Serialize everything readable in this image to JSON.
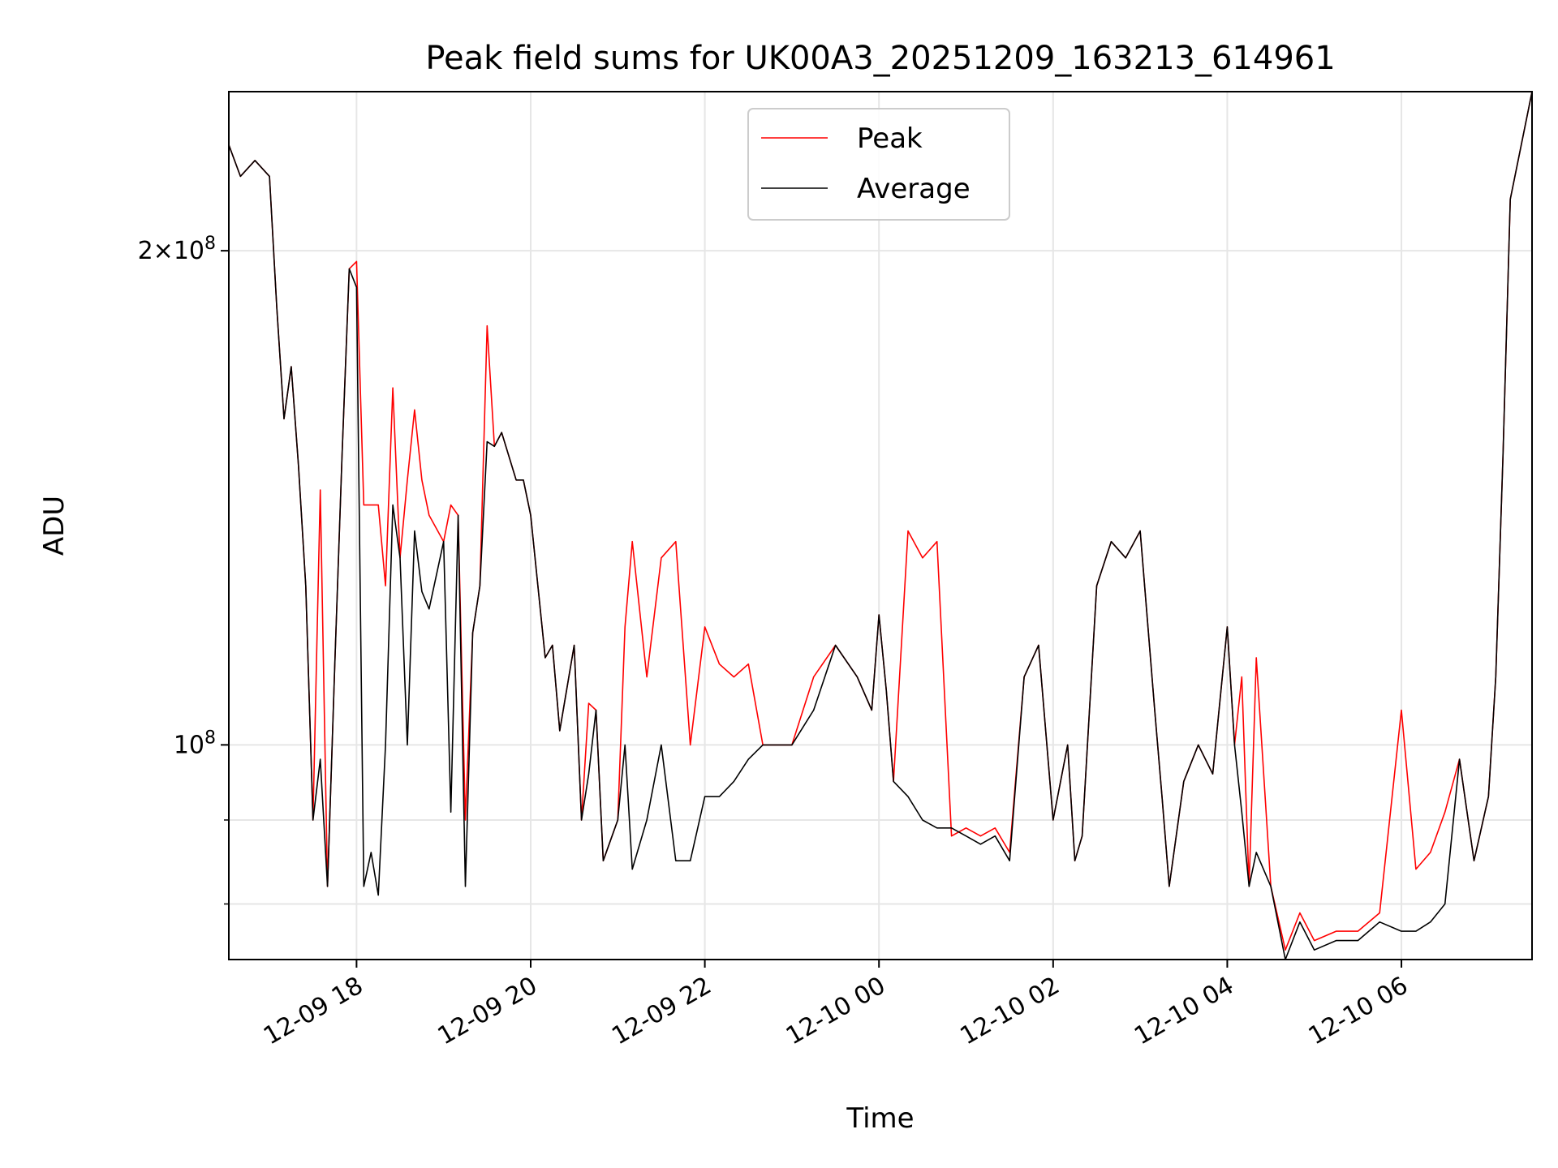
{
  "chart_data": {
    "type": "line",
    "title": "Peak field sums for UK00A3_20251209_163213_614961",
    "xlabel": "Time",
    "ylabel": "ADU",
    "y_scale": "log",
    "ylim": [
      74000000,
      250000000
    ],
    "xlim": [
      "2025-12-09 16:32",
      "2025-12-10 07:30"
    ],
    "x_ticks": [
      "12-09 18",
      "12-09 20",
      "12-09 22",
      "12-10 00",
      "12-10 02",
      "12-10 04",
      "12-10 06"
    ],
    "y_tick_labels": [
      "2×10^8",
      "10^8"
    ],
    "grid": true,
    "legend": {
      "placement": "top-center",
      "entries": [
        "Peak",
        "Average"
      ]
    },
    "colors": {
      "Peak": "#ff0000",
      "Average": "#000000"
    },
    "series": [
      {
        "name": "Average",
        "x": [
          "2025-12-09 16:32",
          "2025-12-09 16:40",
          "2025-12-09 16:50",
          "2025-12-09 17:00",
          "2025-12-09 17:05",
          "2025-12-09 17:10",
          "2025-12-09 17:15",
          "2025-12-09 17:20",
          "2025-12-09 17:25",
          "2025-12-09 17:30",
          "2025-12-09 17:35",
          "2025-12-09 17:40",
          "2025-12-09 17:45",
          "2025-12-09 17:50",
          "2025-12-09 17:55",
          "2025-12-09 18:00",
          "2025-12-09 18:05",
          "2025-12-09 18:10",
          "2025-12-09 18:15",
          "2025-12-09 18:20",
          "2025-12-09 18:25",
          "2025-12-09 18:30",
          "2025-12-09 18:35",
          "2025-12-09 18:40",
          "2025-12-09 18:45",
          "2025-12-09 18:50",
          "2025-12-09 19:00",
          "2025-12-09 19:05",
          "2025-12-09 19:10",
          "2025-12-09 19:15",
          "2025-12-09 19:20",
          "2025-12-09 19:25",
          "2025-12-09 19:30",
          "2025-12-09 19:35",
          "2025-12-09 19:40",
          "2025-12-09 19:50",
          "2025-12-09 19:55",
          "2025-12-09 20:00",
          "2025-12-09 20:10",
          "2025-12-09 20:15",
          "2025-12-09 20:20",
          "2025-12-09 20:30",
          "2025-12-09 20:35",
          "2025-12-09 20:40",
          "2025-12-09 20:45",
          "2025-12-09 20:50",
          "2025-12-09 21:00",
          "2025-12-09 21:05",
          "2025-12-09 21:10",
          "2025-12-09 21:20",
          "2025-12-09 21:30",
          "2025-12-09 21:40",
          "2025-12-09 21:50",
          "2025-12-09 22:00",
          "2025-12-09 22:10",
          "2025-12-09 22:20",
          "2025-12-09 22:30",
          "2025-12-09 22:40",
          "2025-12-09 22:50",
          "2025-12-09 23:00",
          "2025-12-09 23:15",
          "2025-12-09 23:30",
          "2025-12-09 23:45",
          "2025-12-09 23:55",
          "2025-12-10 00:00",
          "2025-12-10 00:05",
          "2025-12-10 00:10",
          "2025-12-10 00:20",
          "2025-12-10 00:30",
          "2025-12-10 00:40",
          "2025-12-10 00:50",
          "2025-12-10 01:00",
          "2025-12-10 01:10",
          "2025-12-10 01:20",
          "2025-12-10 01:30",
          "2025-12-10 01:40",
          "2025-12-10 01:50",
          "2025-12-10 02:00",
          "2025-12-10 02:10",
          "2025-12-10 02:15",
          "2025-12-10 02:20",
          "2025-12-10 02:30",
          "2025-12-10 02:40",
          "2025-12-10 02:50",
          "2025-12-10 03:00",
          "2025-12-10 03:10",
          "2025-12-10 03:15",
          "2025-12-10 03:20",
          "2025-12-10 03:30",
          "2025-12-10 03:40",
          "2025-12-10 03:50",
          "2025-12-10 04:00",
          "2025-12-10 04:05",
          "2025-12-10 04:10",
          "2025-12-10 04:15",
          "2025-12-10 04:20",
          "2025-12-10 04:30",
          "2025-12-10 04:40",
          "2025-12-10 04:50",
          "2025-12-10 05:00",
          "2025-12-10 05:15",
          "2025-12-10 05:30",
          "2025-12-10 05:45",
          "2025-12-10 06:00",
          "2025-12-10 06:10",
          "2025-12-10 06:20",
          "2025-12-10 06:30",
          "2025-12-10 06:40",
          "2025-12-10 06:50",
          "2025-12-10 07:00",
          "2025-12-10 07:05",
          "2025-12-10 07:10",
          "2025-12-10 07:15",
          "2025-12-10 07:30"
        ],
        "values": [
          232000000.0,
          222000000.0,
          227000000.0,
          222000000.0,
          185000000.0,
          158000000.0,
          170000000.0,
          148000000.0,
          125000000.0,
          90000000.0,
          98000000.0,
          82000000.0,
          112000000.0,
          150000000.0,
          195000000.0,
          190000000.0,
          82000000.0,
          86000000.0,
          81000000.0,
          100000000.0,
          140000000.0,
          130000000.0,
          100000000.0,
          135000000.0,
          124000000.0,
          121000000.0,
          133000000.0,
          91000000.0,
          138000000.0,
          82000000.0,
          117000000.0,
          125000000.0,
          153000000.0,
          152000000.0,
          155000000.0,
          145000000.0,
          145000000.0,
          138000000.0,
          113000000.0,
          115000000.0,
          102000000.0,
          115000000.0,
          90000000.0,
          96000000.0,
          105000000.0,
          85000000.0,
          90000000.0,
          100000000.0,
          84000000.0,
          90000000.0,
          100000000.0,
          85000000.0,
          85000000.0,
          93000000.0,
          93000000.0,
          95000000.0,
          98000000.0,
          100000000.0,
          100000000.0,
          100000000.0,
          105000000.0,
          115000000.0,
          110000000.0,
          105000000.0,
          120000000.0,
          108000000.0,
          95000000.0,
          93000000.0,
          90000000.0,
          89000000.0,
          89000000.0,
          88000000.0,
          87000000.0,
          88000000.0,
          85000000.0,
          110000000.0,
          115000000.0,
          90000000.0,
          100000000.0,
          85000000.0,
          88000000.0,
          125000000.0,
          133000000.0,
          130000000.0,
          135000000.0,
          105000000.0,
          93000000.0,
          82000000.0,
          95000000.0,
          100000000.0,
          96000000.0,
          118000000.0,
          100000000.0,
          91000000.0,
          82000000.0,
          86000000.0,
          82000000.0,
          74000000.0,
          78000000.0,
          75000000.0,
          76000000.0,
          76000000.0,
          78000000.0,
          77000000.0,
          77000000.0,
          78000000.0,
          80000000.0,
          98000000.0,
          85000000.0,
          93000000.0,
          110000000.0,
          150000000.0,
          215000000.0,
          250000000.0
        ]
      },
      {
        "name": "Peak",
        "x": [
          "2025-12-09 16:32",
          "2025-12-09 16:40",
          "2025-12-09 16:50",
          "2025-12-09 17:00",
          "2025-12-09 17:05",
          "2025-12-09 17:10",
          "2025-12-09 17:15",
          "2025-12-09 17:20",
          "2025-12-09 17:25",
          "2025-12-09 17:30",
          "2025-12-09 17:35",
          "2025-12-09 17:40",
          "2025-12-09 17:45",
          "2025-12-09 17:50",
          "2025-12-09 17:55",
          "2025-12-09 18:00",
          "2025-12-09 18:05",
          "2025-12-09 18:10",
          "2025-12-09 18:15",
          "2025-12-09 18:20",
          "2025-12-09 18:25",
          "2025-12-09 18:30",
          "2025-12-09 18:35",
          "2025-12-09 18:40",
          "2025-12-09 18:45",
          "2025-12-09 18:50",
          "2025-12-09 19:00",
          "2025-12-09 19:05",
          "2025-12-09 19:10",
          "2025-12-09 19:15",
          "2025-12-09 19:20",
          "2025-12-09 19:25",
          "2025-12-09 19:30",
          "2025-12-09 19:35",
          "2025-12-09 19:40",
          "2025-12-09 19:50",
          "2025-12-09 19:55",
          "2025-12-09 20:00",
          "2025-12-09 20:10",
          "2025-12-09 20:15",
          "2025-12-09 20:20",
          "2025-12-09 20:30",
          "2025-12-09 20:35",
          "2025-12-09 20:40",
          "2025-12-09 20:45",
          "2025-12-09 20:50",
          "2025-12-09 21:00",
          "2025-12-09 21:05",
          "2025-12-09 21:10",
          "2025-12-09 21:20",
          "2025-12-09 21:30",
          "2025-12-09 21:40",
          "2025-12-09 21:50",
          "2025-12-09 22:00",
          "2025-12-09 22:10",
          "2025-12-09 22:20",
          "2025-12-09 22:30",
          "2025-12-09 22:40",
          "2025-12-09 22:50",
          "2025-12-09 23:00",
          "2025-12-09 23:15",
          "2025-12-09 23:30",
          "2025-12-09 23:45",
          "2025-12-09 23:55",
          "2025-12-10 00:00",
          "2025-12-10 00:05",
          "2025-12-10 00:10",
          "2025-12-10 00:20",
          "2025-12-10 00:30",
          "2025-12-10 00:40",
          "2025-12-10 00:50",
          "2025-12-10 01:00",
          "2025-12-10 01:10",
          "2025-12-10 01:20",
          "2025-12-10 01:30",
          "2025-12-10 01:40",
          "2025-12-10 01:50",
          "2025-12-10 02:00",
          "2025-12-10 02:10",
          "2025-12-10 02:15",
          "2025-12-10 02:20",
          "2025-12-10 02:30",
          "2025-12-10 02:40",
          "2025-12-10 02:50",
          "2025-12-10 03:00",
          "2025-12-10 03:10",
          "2025-12-10 03:15",
          "2025-12-10 03:20",
          "2025-12-10 03:30",
          "2025-12-10 03:40",
          "2025-12-10 03:50",
          "2025-12-10 04:00",
          "2025-12-10 04:05",
          "2025-12-10 04:10",
          "2025-12-10 04:15",
          "2025-12-10 04:20",
          "2025-12-10 04:30",
          "2025-12-10 04:40",
          "2025-12-10 04:50",
          "2025-12-10 05:00",
          "2025-12-10 05:15",
          "2025-12-10 05:30",
          "2025-12-10 05:45",
          "2025-12-10 06:00",
          "2025-12-10 06:10",
          "2025-12-10 06:20",
          "2025-12-10 06:30",
          "2025-12-10 06:40",
          "2025-12-10 06:50",
          "2025-12-10 07:00",
          "2025-12-10 07:05",
          "2025-12-10 07:10",
          "2025-12-10 07:15",
          "2025-12-10 07:30"
        ],
        "values": [
          232000000.0,
          222000000.0,
          227000000.0,
          222000000.0,
          185000000.0,
          158000000.0,
          170000000.0,
          148000000.0,
          125000000.0,
          90000000.0,
          143000000.0,
          82000000.0,
          112000000.0,
          150000000.0,
          195000000.0,
          197000000.0,
          140000000.0,
          140000000.0,
          140000000.0,
          125000000.0,
          165000000.0,
          130000000.0,
          145000000.0,
          160000000.0,
          145000000.0,
          138000000.0,
          133000000.0,
          140000000.0,
          138000000.0,
          90000000.0,
          117000000.0,
          125000000.0,
          180000000.0,
          152000000.0,
          155000000.0,
          145000000.0,
          145000000.0,
          138000000.0,
          113000000.0,
          115000000.0,
          102000000.0,
          115000000.0,
          90000000.0,
          106000000.0,
          105000000.0,
          85000000.0,
          90000000.0,
          118000000.0,
          133000000.0,
          110000000.0,
          130000000.0,
          133000000.0,
          100000000.0,
          118000000.0,
          112000000.0,
          110000000.0,
          112000000.0,
          100000000.0,
          100000000.0,
          100000000.0,
          110000000.0,
          115000000.0,
          110000000.0,
          105000000.0,
          120000000.0,
          108000000.0,
          95000000.0,
          135000000.0,
          130000000.0,
          133000000.0,
          88000000.0,
          89000000.0,
          88000000.0,
          89000000.0,
          86000000.0,
          110000000.0,
          115000000.0,
          90000000.0,
          100000000.0,
          85000000.0,
          88000000.0,
          125000000.0,
          133000000.0,
          130000000.0,
          135000000.0,
          105000000.0,
          93000000.0,
          82000000.0,
          95000000.0,
          100000000.0,
          96000000.0,
          118000000.0,
          100000000.0,
          110000000.0,
          82000000.0,
          113000000.0,
          82000000.0,
          75000000.0,
          79000000.0,
          76000000.0,
          77000000.0,
          77000000.0,
          79000000.0,
          105000000.0,
          84000000.0,
          86000000.0,
          91000000.0,
          98000000.0,
          85000000.0,
          93000000.0,
          110000000.0,
          150000000.0,
          215000000.0,
          250000000.0
        ]
      }
    ]
  }
}
